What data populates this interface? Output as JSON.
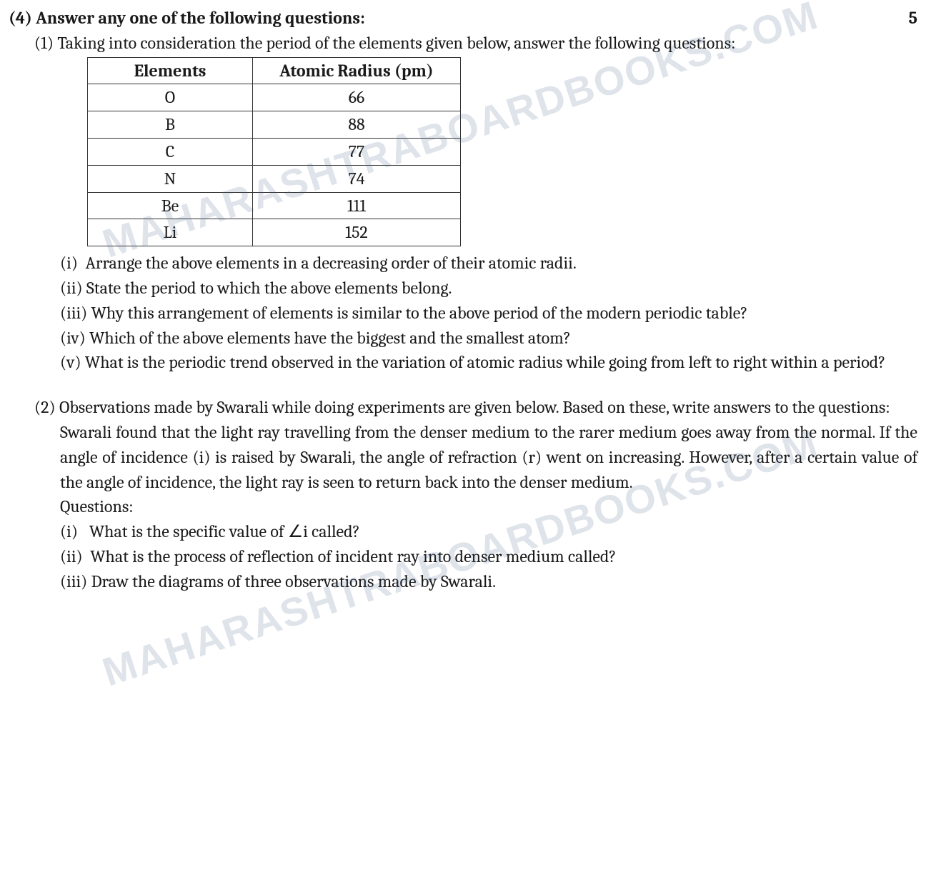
{
  "section": {
    "number": "(4)",
    "title": "Answer any one of the following questions:",
    "marks": "5"
  },
  "watermark": "MAHARASHTRABOARDBOOKS.COM",
  "q1": {
    "number": "(1)",
    "intro": "Taking into consideration the period of the elements given below, answer the following questions:",
    "table": {
      "headers": [
        "Elements",
        "Atomic Radius (pm)"
      ],
      "rows": [
        [
          "O",
          "66"
        ],
        [
          "B",
          "88"
        ],
        [
          "C",
          "77"
        ],
        [
          "N",
          "74"
        ],
        [
          "Be",
          "111"
        ],
        [
          "Li",
          "152"
        ]
      ]
    },
    "parts": {
      "i": {
        "num": "(i)",
        "text": "Arrange the above elements in a decreasing order of their atomic radii."
      },
      "ii": {
        "num": "(ii)",
        "text": "State the period to which the above elements belong."
      },
      "iii": {
        "num": "(iii)",
        "text": "Why this arrangement of elements is similar to the above period of the modern periodic table?"
      },
      "iv": {
        "num": "(iv)",
        "text": "Which of the above elements have the biggest and the smallest atom?"
      },
      "v": {
        "num": "(v)",
        "text": "What is the periodic trend observed in the variation of atomic radius while going from left to right within a period?"
      }
    }
  },
  "q2": {
    "number": "(2)",
    "intro": "Observations made by Swarali while doing experiments are given below. Based on these, write answers to the questions:",
    "body": "Swarali found that the light ray travelling from the denser medium to the rarer medium goes away from the normal. If the angle of incidence (i) is raised by Swarali, the angle of refraction (r) went on increasing. However, after a certain value of the angle of incidence, the light ray is seen to return back into the denser medium.",
    "questions_label": "Questions:",
    "parts": {
      "i": {
        "num": "(i)",
        "text": "What is the specific value of ∠i called?"
      },
      "ii": {
        "num": "(ii)",
        "text": "What is the process of reflection of incident ray into denser medium called?"
      },
      "iii": {
        "num": "(iii)",
        "text": "Draw the diagrams of three observations made by Swarali."
      }
    }
  }
}
